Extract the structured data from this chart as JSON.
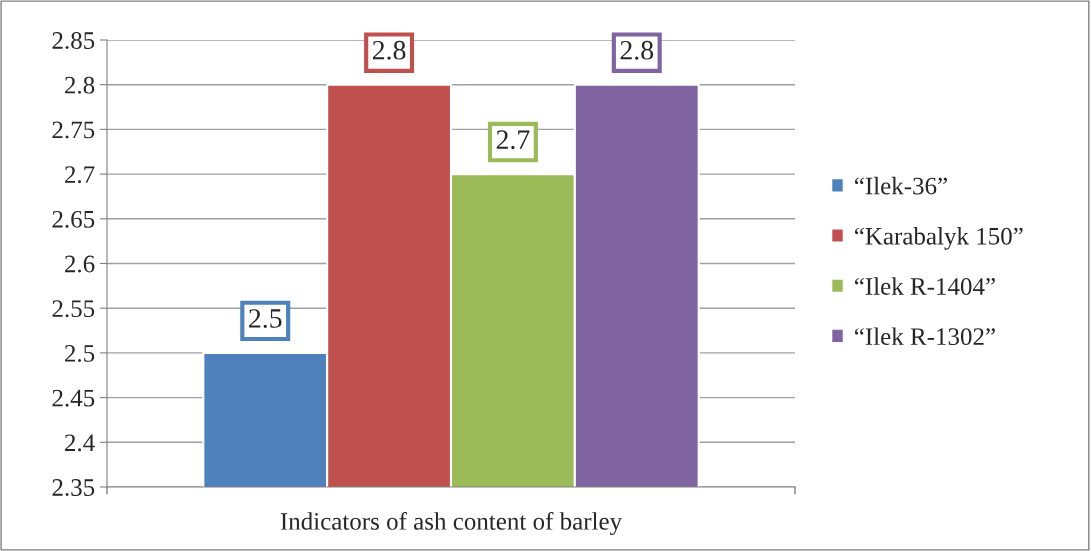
{
  "chart_data": {
    "type": "bar",
    "categories": [
      "Indicators of ash content of barley"
    ],
    "series": [
      {
        "name": "“Ilek-36”",
        "color": "#4f81bd",
        "values": [
          2.5
        ]
      },
      {
        "name": "“Karabalyk 150”",
        "color": "#c0504d",
        "values": [
          2.8
        ]
      },
      {
        "name": "“Ilek R-1404”",
        "color": "#9bbb59",
        "values": [
          2.7
        ]
      },
      {
        "name": "“Ilek R-1302”",
        "color": "#8064a2",
        "values": [
          2.8
        ]
      }
    ],
    "ylim": [
      2.35,
      2.85
    ],
    "yticks": [
      2.35,
      2.4,
      2.45,
      2.5,
      2.55,
      2.6,
      2.65,
      2.7,
      2.75,
      2.8,
      2.85
    ],
    "grid": "y",
    "legend": "right",
    "data_labels": true
  }
}
